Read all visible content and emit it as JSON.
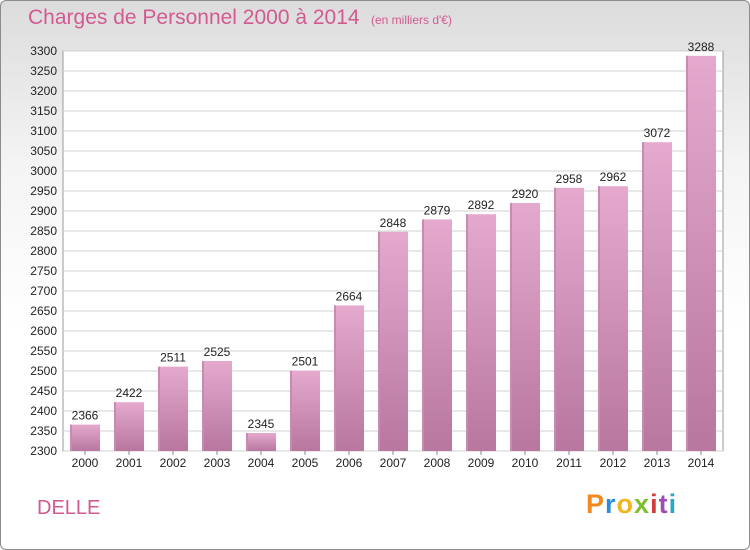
{
  "title": "Charges de Personnel 2000 à 2014",
  "subtitle": "(en milliers d'€)",
  "commune": "DELLE",
  "logo": {
    "letters": [
      "P",
      "r",
      "o",
      "x",
      "i",
      "t",
      "i"
    ],
    "colors": [
      "#f08a1f",
      "#2a8fd6",
      "#f2b51d",
      "#7dbd2f",
      "#d23c3c",
      "#9b4fb5",
      "#2aa7c9"
    ]
  },
  "colors": {
    "bar_top": "#e5a9ce",
    "bar_bottom": "#b7779f",
    "text_accent": "#d25a91"
  },
  "chart_data": {
    "type": "bar",
    "title": "Charges de Personnel 2000 à 2014",
    "subtitle": "(en milliers d'€)",
    "categories": [
      "2000",
      "2001",
      "2002",
      "2003",
      "2004",
      "2005",
      "2006",
      "2007",
      "2008",
      "2009",
      "2010",
      "2011",
      "2012",
      "2013",
      "2014"
    ],
    "values": [
      2366,
      2422,
      2511,
      2525,
      2345,
      2501,
      2664,
      2848,
      2879,
      2892,
      2920,
      2958,
      2962,
      3072,
      3288
    ],
    "ylim": [
      2300,
      3300
    ],
    "yticks": [
      2300,
      2350,
      2400,
      2450,
      2500,
      2550,
      2600,
      2650,
      2700,
      2750,
      2800,
      2850,
      2900,
      2950,
      3000,
      3050,
      3100,
      3150,
      3200,
      3250,
      3300
    ],
    "grid": true,
    "xlabel": "",
    "ylabel": ""
  }
}
